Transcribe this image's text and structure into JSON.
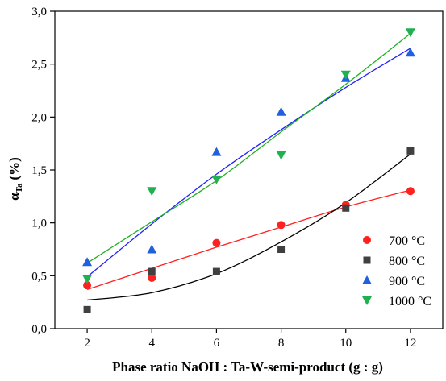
{
  "chart_data": {
    "type": "scatter",
    "xlabel": "Phase ratio NaOH : Ta-W-semi-product (g : g)",
    "ylabel_main": "α",
    "ylabel_sub": "Ta",
    "ylabel_unit": "(%)",
    "xlim": [
      1.0,
      13.0
    ],
    "ylim": [
      0.0,
      3.0
    ],
    "x_ticks": [
      2,
      4,
      6,
      8,
      10,
      12
    ],
    "y_ticks": [
      0.0,
      0.5,
      1.0,
      1.5,
      2.0,
      2.5,
      3.0
    ],
    "y_tick_labels": [
      "0,0",
      "0,5",
      "1,0",
      "1,5",
      "2,0",
      "2,5",
      "3,0"
    ],
    "grid": false,
    "legend_position": "bottom-right",
    "series": [
      {
        "name": "700 °C",
        "marker": "circle",
        "color": "#ff2020",
        "line_color": "#ff2020",
        "x": [
          2,
          4,
          6,
          8,
          10,
          12
        ],
        "y": [
          0.41,
          0.48,
          0.81,
          0.98,
          1.17,
          1.3
        ],
        "fit": [
          0.37,
          0.57,
          0.77,
          0.96,
          1.15,
          1.31
        ]
      },
      {
        "name": "800 °C",
        "marker": "square",
        "color": "#404040",
        "line_color": "#000000",
        "x": [
          2,
          4,
          6,
          8,
          10,
          12
        ],
        "y": [
          0.18,
          0.54,
          0.54,
          0.75,
          1.14,
          1.68
        ],
        "fit": [
          0.27,
          0.34,
          0.52,
          0.82,
          1.19,
          1.65
        ]
      },
      {
        "name": "900 °C",
        "marker": "triangle-up",
        "color": "#2060e0",
        "line_color": "#2020ff",
        "x": [
          2,
          4,
          6,
          8,
          10,
          12
        ],
        "y": [
          0.63,
          0.75,
          1.67,
          2.05,
          2.37,
          2.61
        ],
        "fit": [
          0.49,
          0.99,
          1.46,
          1.88,
          2.28,
          2.65
        ]
      },
      {
        "name": "1000 °C",
        "marker": "triangle-down",
        "color": "#20b050",
        "line_color": "#20b020",
        "x": [
          2,
          4,
          6,
          8,
          10,
          12
        ],
        "y": [
          0.47,
          1.3,
          1.41,
          1.64,
          2.4,
          2.8
        ],
        "fit": [
          0.62,
          1.01,
          1.4,
          1.86,
          2.31,
          2.79
        ]
      }
    ]
  }
}
